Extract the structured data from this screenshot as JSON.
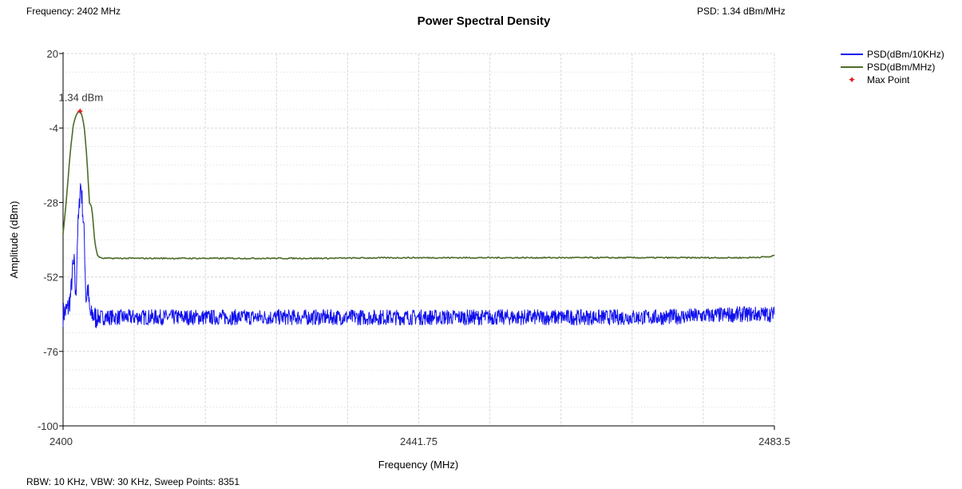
{
  "header": {
    "frequency_readout": "Frequency: 2402 MHz",
    "psd_readout": "PSD: 1.34 dBm/MHz"
  },
  "footer": {
    "settings": "RBW: 10 KHz,  VBW: 30 KHz,  Sweep Points: 8351"
  },
  "colors": {
    "psd_10khz": "#1010ee",
    "psd_mhz": "#4e6b2a",
    "max_point": "#e31b1b",
    "grid": "#d9d9d9"
  },
  "chart_data": {
    "type": "line",
    "title": "Power Spectral Density",
    "xlabel": "Frequency (MHz)",
    "ylabel": "Amplitude (dBm)",
    "xlim": [
      2400,
      2483.5
    ],
    "ylim": [
      -100,
      20
    ],
    "x_ticks": [
      "2400",
      "2441.75",
      "2483.5"
    ],
    "y_ticks": [
      "20",
      "-4",
      "-28",
      "-52",
      "-76",
      "-100"
    ],
    "grid": true,
    "legend_position": "top-right",
    "series": [
      {
        "name": "PSD(dBm/10KHz)",
        "x": [
          2400,
          2400.3,
          2400.6,
          2400.9,
          2401.1,
          2401.3,
          2401.5,
          2401.7,
          2401.9,
          2402.0,
          2402.1,
          2402.3,
          2402.5,
          2402.7,
          2402.9,
          2403.1,
          2403.3,
          2403.5,
          2403.7,
          2404.0,
          2406,
          2410,
          2420,
          2430,
          2440,
          2450,
          2460,
          2470,
          2480,
          2483.5
        ],
        "y": [
          -64,
          -63,
          -62,
          -58,
          -50,
          -48,
          -60,
          -38,
          -30,
          -22,
          -23,
          -30,
          -40,
          -60,
          -55,
          -63,
          -65,
          -64,
          -65,
          -65,
          -65,
          -65,
          -65,
          -65,
          -65,
          -65,
          -65,
          -65,
          -64,
          -64
        ],
        "noise_amplitude_db": 2.5
      },
      {
        "name": "PSD(dBm/MHz)",
        "x": [
          2400,
          2400.3,
          2400.6,
          2400.9,
          2401.2,
          2401.5,
          2401.8,
          2402.0,
          2402.2,
          2402.5,
          2402.8,
          2403.1,
          2403.4,
          2403.7,
          2404.0,
          2404.5,
          2410,
          2420,
          2430,
          2440,
          2450,
          2460,
          2470,
          2480,
          2483.0,
          2483.5
        ],
        "y": [
          -38,
          -30,
          -20,
          -10,
          -3,
          0,
          1.2,
          1.34,
          0.5,
          -4,
          -14,
          -28,
          -30,
          -40,
          -45,
          -46,
          -46,
          -46,
          -46,
          -45.8,
          -45.8,
          -45.8,
          -45.8,
          -45.8,
          -45.5,
          -45
        ],
        "noise_amplitude_db": 0.2
      },
      {
        "name": "Max Point",
        "x": [
          2402
        ],
        "y": [
          1.34
        ],
        "marker": "star",
        "label": "1.34 dBm"
      }
    ]
  }
}
